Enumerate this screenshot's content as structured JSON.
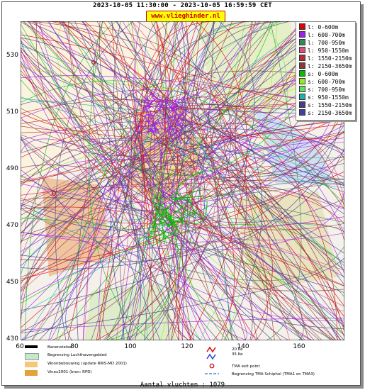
{
  "header": {
    "title": "2023-10-05 11:30:00 - 2023-10-05 16:59:59 CET",
    "site": "www.vlieghinder.nl"
  },
  "axes": {
    "y_ticks": [
      "530",
      "510",
      "490",
      "470",
      "450",
      "430"
    ],
    "x_ticks": [
      "60",
      "80",
      "100",
      "120",
      "140",
      "160"
    ]
  },
  "legend": {
    "items": [
      {
        "label": "l: 0-600m",
        "color": "#e00000"
      },
      {
        "label": "l: 600-700m",
        "color": "#a020f0"
      },
      {
        "label": "l: 700-950m",
        "color": "#2e8b57"
      },
      {
        "label": "l: 950-1550m",
        "color": "#d85080"
      },
      {
        "label": "l: 1550-2150m",
        "color": "#b03030"
      },
      {
        "label": "l: 2150-3650m",
        "color": "#8b3a3a"
      },
      {
        "label": "s: 0-600m",
        "color": "#00c000"
      },
      {
        "label": "s: 600-700m",
        "color": "#90ee20"
      },
      {
        "label": "s: 700-950m",
        "color": "#66dd66"
      },
      {
        "label": "s: 950-1550m",
        "color": "#20b2aa"
      },
      {
        "label": "s: 1550-2150m",
        "color": "#483d8b"
      },
      {
        "label": "s: 2150-3650m",
        "color": "#4040a0"
      }
    ]
  },
  "map_legend": {
    "runway": "Banenstelsel",
    "airport_boundary": "Begrenzing Luchthavengebied",
    "housing": "Woonbebouwing (update RWS-MD 2001)",
    "vinex": "Vinex2001 (bron: RPD)",
    "contour_20": "20 Ke",
    "contour_35": "35 Ke",
    "tma_exit": "TMA exit point",
    "tma_boundary": "Begrenzing TMA Schiphol  (TMA1 en TMA3)"
  },
  "footer": {
    "count": "Aantal vluchten : 1079"
  }
}
